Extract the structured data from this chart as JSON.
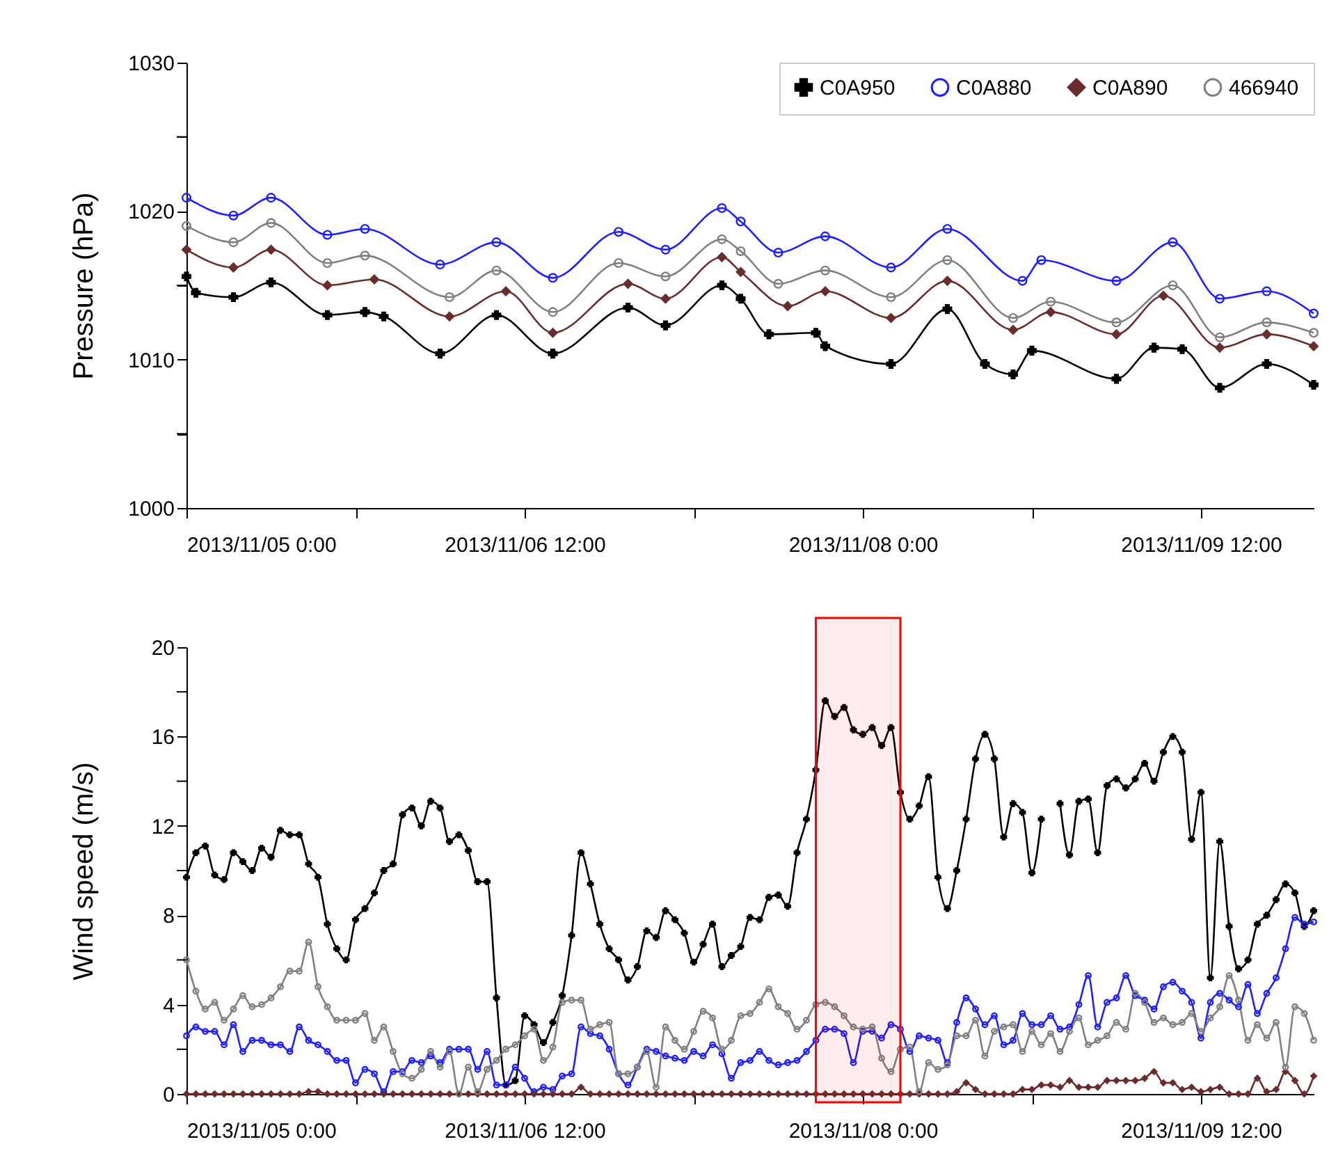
{
  "chart_data": [
    {
      "type": "line",
      "ylabel": "Pressure (hPa)",
      "xlim": [
        "2013-11-05T00:00",
        "2013-11-10T00:00"
      ],
      "xticks": [
        {
          "value": "2013-11-05T00:00",
          "label": "2013/11/05 0:00"
        },
        {
          "value": "2013-11-05T18:00",
          "label": null
        },
        {
          "value": "2013-11-06T12:00",
          "label": "2013/11/06 12:00"
        },
        {
          "value": "2013-11-07T06:00",
          "label": null
        },
        {
          "value": "2013-11-08T00:00",
          "label": "2013/11/08 0:00"
        },
        {
          "value": "2013-11-08T18:00",
          "label": null
        },
        {
          "value": "2013-11-09T12:00",
          "label": "2013/11/09 12:00"
        }
      ],
      "ylim": [
        1000,
        1030
      ],
      "yticks": [
        1000,
        {
          "value": 1005,
          "label": null
        },
        1010,
        {
          "value": 1015,
          "label": null
        },
        1020,
        {
          "value": 1025,
          "label": null
        },
        1030
      ],
      "legend": "top right",
      "line_style": "solid",
      "series": [
        {
          "name": "C0A950",
          "color": "#000000",
          "marker": "cross",
          "x": [
            "2013-11-05T00:00",
            "2013-11-05T01:00",
            "2013-11-05T05:00",
            "2013-11-05T09:00",
            "2013-11-05T15:00",
            "2013-11-05T19:00",
            "2013-11-05T21:00",
            "2013-11-06T03:00",
            "2013-11-06T09:00",
            "2013-11-06T15:00",
            "2013-11-06T23:00",
            "2013-11-07T03:00",
            "2013-11-07T09:00",
            "2013-11-07T11:00",
            "2013-11-07T14:00",
            "2013-11-07T19:00",
            "2013-11-07T20:00",
            "2013-11-08T03:00",
            "2013-11-08T09:00",
            "2013-11-08T13:00",
            "2013-11-08T16:00",
            "2013-11-08T18:00",
            "2013-11-09T03:00",
            "2013-11-09T07:00",
            "2013-11-09T10:00",
            "2013-11-09T14:00",
            "2013-11-09T19:00",
            "2013-11-10T00:00"
          ],
          "values": [
            1015.6,
            1014.5,
            1014.2,
            1015.2,
            1013.0,
            1013.2,
            1012.9,
            1010.4,
            1013.0,
            1010.4,
            1013.5,
            1012.3,
            1015.0,
            1014.1,
            1011.7,
            1011.8,
            1010.9,
            1009.7,
            1013.4,
            1009.7,
            1009.0,
            1010.6,
            1008.7,
            1010.8,
            1010.7,
            1008.1,
            1009.7,
            1008.3
          ]
        },
        {
          "name": "C0A880",
          "color": "#1f1fff",
          "marker": "circle",
          "x": [
            "2013-11-05T00:00",
            "2013-11-05T05:00",
            "2013-11-05T09:00",
            "2013-11-05T15:00",
            "2013-11-05T19:00",
            "2013-11-06T03:00",
            "2013-11-06T09:00",
            "2013-11-06T15:00",
            "2013-11-06T22:00",
            "2013-11-07T03:00",
            "2013-11-07T09:00",
            "2013-11-07T11:00",
            "2013-11-07T15:00",
            "2013-11-07T20:00",
            "2013-11-08T03:00",
            "2013-11-08T09:00",
            "2013-11-08T17:00",
            "2013-11-08T19:00",
            "2013-11-09T03:00",
            "2013-11-09T09:00",
            "2013-11-09T14:00",
            "2013-11-09T19:00",
            "2013-11-10T00:00"
          ],
          "values": [
            1020.9,
            1019.7,
            1020.9,
            1018.4,
            1018.8,
            1016.4,
            1017.9,
            1015.5,
            1018.6,
            1017.4,
            1020.2,
            1019.3,
            1017.2,
            1018.3,
            1016.2,
            1018.8,
            1015.3,
            1016.7,
            1015.3,
            1017.9,
            1014.1,
            1014.6,
            1013.1
          ]
        },
        {
          "name": "C0A890",
          "color": "#6b2c2c",
          "marker": "diamond",
          "x": [
            "2013-11-05T00:00",
            "2013-11-05T05:00",
            "2013-11-05T09:00",
            "2013-11-05T15:00",
            "2013-11-05T20:00",
            "2013-11-06T04:00",
            "2013-11-06T10:00",
            "2013-11-06T15:00",
            "2013-11-06T23:00",
            "2013-11-07T03:00",
            "2013-11-07T09:00",
            "2013-11-07T11:00",
            "2013-11-07T16:00",
            "2013-11-07T20:00",
            "2013-11-08T03:00",
            "2013-11-08T09:00",
            "2013-11-08T16:00",
            "2013-11-08T20:00",
            "2013-11-09T03:00",
            "2013-11-09T08:00",
            "2013-11-09T14:00",
            "2013-11-09T19:00",
            "2013-11-10T00:00"
          ],
          "values": [
            1017.4,
            1016.2,
            1017.4,
            1015.0,
            1015.4,
            1012.9,
            1014.6,
            1011.8,
            1015.1,
            1014.1,
            1016.9,
            1015.9,
            1013.6,
            1014.6,
            1012.8,
            1015.3,
            1012.0,
            1013.2,
            1011.7,
            1014.3,
            1010.8,
            1011.7,
            1010.9
          ]
        },
        {
          "name": "466940",
          "color": "#808080",
          "marker": "circle",
          "x": [
            "2013-11-05T00:00",
            "2013-11-05T05:00",
            "2013-11-05T09:00",
            "2013-11-05T15:00",
            "2013-11-05T19:00",
            "2013-11-06T04:00",
            "2013-11-06T09:00",
            "2013-11-06T15:00",
            "2013-11-06T22:00",
            "2013-11-07T03:00",
            "2013-11-07T09:00",
            "2013-11-07T11:00",
            "2013-11-07T15:00",
            "2013-11-07T20:00",
            "2013-11-08T03:00",
            "2013-11-08T09:00",
            "2013-11-08T16:00",
            "2013-11-08T20:00",
            "2013-11-09T03:00",
            "2013-11-09T09:00",
            "2013-11-09T14:00",
            "2013-11-09T19:00",
            "2013-11-10T00:00"
          ],
          "values": [
            1019.0,
            1017.9,
            1019.2,
            1016.5,
            1017.0,
            1014.2,
            1016.0,
            1013.2,
            1016.5,
            1015.6,
            1018.1,
            1017.3,
            1015.1,
            1016.0,
            1014.2,
            1016.7,
            1012.8,
            1013.9,
            1012.5,
            1015.0,
            1011.5,
            1012.5,
            1011.8
          ]
        }
      ]
    },
    {
      "type": "line",
      "ylabel": "Wind speed (m/s)",
      "xlim": [
        "2013-11-05T00:00",
        "2013-11-10T00:00"
      ],
      "xticks": [
        {
          "value": "2013-11-05T00:00",
          "label": "2013/11/05 0:00"
        },
        {
          "value": "2013-11-05T18:00",
          "label": null
        },
        {
          "value": "2013-11-06T12:00",
          "label": "2013/11/06 12:00"
        },
        {
          "value": "2013-11-07T06:00",
          "label": null
        },
        {
          "value": "2013-11-08T00:00",
          "label": "2013/11/08 0:00"
        },
        {
          "value": "2013-11-08T18:00",
          "label": null
        },
        {
          "value": "2013-11-09T12:00",
          "label": "2013/11/09 12:00"
        }
      ],
      "ylim": [
        0,
        20
      ],
      "yticks": [
        0,
        {
          "value": 2,
          "label": null
        },
        4,
        {
          "value": 6,
          "label": null
        },
        8,
        {
          "value": 10,
          "label": null
        },
        12,
        {
          "value": 14,
          "label": null
        },
        16,
        {
          "value": 18,
          "label": null
        },
        20
      ],
      "line_style": "solid",
      "bands": [
        {
          "axis": "x",
          "from": "2013-11-07T19:00",
          "to": "2013-11-08T04:00",
          "color": "#ff0000"
        }
      ],
      "x": [
        "2013-11-05T00:00",
        "2013-11-05T01:00",
        "2013-11-05T02:00",
        "2013-11-05T03:00",
        "2013-11-05T04:00",
        "2013-11-05T05:00",
        "2013-11-05T06:00",
        "2013-11-05T07:00",
        "2013-11-05T08:00",
        "2013-11-05T09:00",
        "2013-11-05T10:00",
        "2013-11-05T11:00",
        "2013-11-05T12:00",
        "2013-11-05T13:00",
        "2013-11-05T14:00",
        "2013-11-05T15:00",
        "2013-11-05T16:00",
        "2013-11-05T17:00",
        "2013-11-05T18:00",
        "2013-11-05T19:00",
        "2013-11-05T20:00",
        "2013-11-05T21:00",
        "2013-11-05T22:00",
        "2013-11-05T23:00",
        "2013-11-06T00:00",
        "2013-11-06T01:00",
        "2013-11-06T02:00",
        "2013-11-06T03:00",
        "2013-11-06T04:00",
        "2013-11-06T05:00",
        "2013-11-06T06:00",
        "2013-11-06T07:00",
        "2013-11-06T08:00",
        "2013-11-06T09:00",
        "2013-11-06T10:00",
        "2013-11-06T11:00",
        "2013-11-06T12:00",
        "2013-11-06T13:00",
        "2013-11-06T14:00",
        "2013-11-06T15:00",
        "2013-11-06T16:00",
        "2013-11-06T17:00",
        "2013-11-06T18:00",
        "2013-11-06T19:00",
        "2013-11-06T20:00",
        "2013-11-06T21:00",
        "2013-11-06T22:00",
        "2013-11-06T23:00",
        "2013-11-07T00:00",
        "2013-11-07T01:00",
        "2013-11-07T02:00",
        "2013-11-07T03:00",
        "2013-11-07T04:00",
        "2013-11-07T05:00",
        "2013-11-07T06:00",
        "2013-11-07T07:00",
        "2013-11-07T08:00",
        "2013-11-07T09:00",
        "2013-11-07T10:00",
        "2013-11-07T11:00",
        "2013-11-07T12:00",
        "2013-11-07T13:00",
        "2013-11-07T14:00",
        "2013-11-07T15:00",
        "2013-11-07T16:00",
        "2013-11-07T17:00",
        "2013-11-07T18:00",
        "2013-11-07T19:00",
        "2013-11-07T20:00",
        "2013-11-07T21:00",
        "2013-11-07T22:00",
        "2013-11-07T23:00",
        "2013-11-08T00:00",
        "2013-11-08T01:00",
        "2013-11-08T02:00",
        "2013-11-08T03:00",
        "2013-11-08T04:00",
        "2013-11-08T05:00",
        "2013-11-08T06:00",
        "2013-11-08T07:00",
        "2013-11-08T08:00",
        "2013-11-08T09:00",
        "2013-11-08T10:00",
        "2013-11-08T11:00",
        "2013-11-08T12:00",
        "2013-11-08T13:00",
        "2013-11-08T14:00",
        "2013-11-08T15:00",
        "2013-11-08T16:00",
        "2013-11-08T17:00",
        "2013-11-08T18:00",
        "2013-11-08T19:00",
        "2013-11-08T20:00",
        "2013-11-08T21:00",
        "2013-11-08T22:00",
        "2013-11-08T23:00",
        "2013-11-09T00:00",
        "2013-11-09T01:00",
        "2013-11-09T02:00",
        "2013-11-09T03:00",
        "2013-11-09T04:00",
        "2013-11-09T05:00",
        "2013-11-09T06:00",
        "2013-11-09T07:00",
        "2013-11-09T08:00",
        "2013-11-09T09:00",
        "2013-11-09T10:00",
        "2013-11-09T11:00",
        "2013-11-09T12:00",
        "2013-11-09T13:00",
        "2013-11-09T14:00",
        "2013-11-09T15:00",
        "2013-11-09T16:00",
        "2013-11-09T17:00",
        "2013-11-09T18:00",
        "2013-11-09T19:00",
        "2013-11-09T20:00",
        "2013-11-09T21:00",
        "2013-11-09T22:00",
        "2013-11-09T23:00",
        "2013-11-10T00:00"
      ],
      "series": [
        {
          "color": "#000000",
          "marker": "cross",
          "values": [
            9.7,
            10.8,
            11.1,
            9.8,
            9.6,
            10.8,
            10.4,
            10.0,
            11.0,
            10.6,
            11.8,
            11.6,
            11.6,
            10.3,
            9.7,
            7.6,
            6.5,
            6.0,
            7.8,
            8.3,
            9.0,
            10.0,
            10.3,
            12.5,
            12.8,
            12.0,
            13.1,
            12.8,
            11.3,
            11.6,
            10.9,
            9.5,
            9.5,
            4.3,
            0.4,
            0.6,
            3.5,
            3.1,
            2.3,
            3.2,
            4.4,
            7.1,
            10.8,
            9.4,
            7.6,
            6.5,
            6.0,
            5.1,
            5.7,
            7.3,
            7.0,
            8.2,
            7.8,
            7.2,
            5.9,
            6.7,
            7.6,
            5.7,
            6.2,
            6.6,
            7.9,
            7.8,
            8.8,
            8.9,
            8.4,
            10.8,
            12.3,
            14.5,
            17.6,
            16.9,
            17.3,
            16.3,
            16.1,
            16.4,
            15.6,
            16.4,
            13.5,
            12.3,
            12.9,
            14.2,
            9.7,
            8.3,
            10.0,
            12.3,
            15.0,
            16.1,
            15.0,
            11.5,
            13.0,
            12.6,
            9.9,
            12.3,
            null,
            13.0,
            10.7,
            13.1,
            13.2,
            10.8,
            13.8,
            14.1,
            13.7,
            14.1,
            14.8,
            14.0,
            15.3,
            16.0,
            15.3,
            11.4,
            13.5,
            5.2,
            11.3,
            7.5,
            5.6,
            6.0,
            7.6,
            8.0,
            8.7,
            9.4,
            9.0,
            7.5,
            8.2
          ]
        },
        {
          "color": "#1f1fff",
          "marker": "circle",
          "values": [
            2.6,
            3.0,
            2.8,
            2.8,
            2.2,
            3.1,
            1.9,
            2.4,
            2.4,
            2.2,
            2.2,
            1.9,
            3.0,
            2.4,
            2.2,
            1.9,
            1.5,
            1.5,
            0.5,
            1.1,
            0.9,
            0.1,
            1.0,
            1.0,
            1.5,
            1.4,
            1.7,
            1.4,
            2.0,
            2.0,
            2.0,
            1.1,
            1.9,
            0.4,
            0.4,
            1.2,
            0.7,
            0.1,
            0.3,
            0.2,
            0.8,
            0.9,
            3.0,
            2.7,
            2.6,
            2.0,
            0.9,
            0.4,
            1.2,
            2.0,
            1.9,
            1.7,
            1.6,
            1.5,
            1.9,
            1.7,
            2.2,
            1.8,
            0.7,
            1.4,
            1.5,
            1.9,
            1.5,
            1.3,
            1.4,
            1.5,
            1.9,
            2.4,
            2.9,
            2.9,
            2.7,
            1.4,
            2.8,
            2.8,
            2.5,
            3.1,
            2.9,
            1.9,
            2.6,
            2.5,
            2.4,
            1.4,
            3.2,
            4.3,
            3.8,
            3.1,
            3.5,
            2.2,
            2.4,
            3.6,
            3.1,
            3.1,
            3.5,
            2.9,
            3.0,
            4.0,
            5.3,
            3.0,
            4.1,
            4.3,
            5.3,
            4.4,
            4.2,
            3.8,
            4.8,
            5.0,
            4.6,
            4.1,
            2.5,
            4.1,
            4.5,
            4.2,
            3.9,
            4.9,
            3.6,
            4.5,
            5.2,
            6.5,
            7.9,
            7.6,
            7.7
          ]
        },
        {
          "color": "#6b2c2c",
          "marker": "diamond",
          "values": [
            0,
            0,
            0,
            0,
            0,
            0,
            0,
            0,
            0,
            0,
            0,
            0,
            0,
            0.1,
            0.1,
            0,
            0,
            0,
            0,
            0,
            0,
            0,
            0,
            0,
            0,
            0,
            0,
            0,
            0,
            0,
            0,
            0,
            0,
            0,
            0,
            0,
            0,
            0,
            0,
            0,
            0,
            0,
            0.3,
            0,
            0,
            0,
            0,
            0,
            0,
            0,
            0,
            0,
            0,
            0,
            0,
            0,
            0,
            0,
            0,
            0,
            0,
            0,
            0,
            0,
            0,
            0,
            0,
            0,
            0,
            0,
            0,
            0,
            0,
            0,
            0,
            0,
            0,
            0,
            0,
            0,
            0,
            0,
            0.1,
            0.5,
            0.2,
            0,
            0,
            0,
            0,
            0.2,
            0.2,
            0.4,
            0.4,
            0.3,
            0.6,
            0.3,
            0.3,
            0.3,
            0.6,
            0.6,
            0.6,
            0.6,
            0.7,
            1.0,
            0.5,
            0.5,
            0.2,
            0.3,
            0.1,
            0.2,
            0.3,
            0,
            0,
            0,
            0.7,
            0.1,
            0.2,
            1.0,
            0.6,
            0,
            0.8
          ]
        },
        {
          "color": "#808080",
          "marker": "circle",
          "values": [
            6.0,
            4.6,
            3.8,
            4.1,
            3.3,
            3.8,
            4.4,
            3.9,
            4.0,
            4.3,
            4.8,
            5.5,
            5.5,
            6.8,
            4.8,
            3.9,
            3.3,
            3.3,
            3.3,
            3.6,
            2.4,
            3.0,
            1.9,
            0.9,
            0.7,
            1.1,
            1.9,
            1.2,
            1.9,
            0.0,
            1.2,
            0.1,
            1.1,
            1.5,
            2.0,
            2.2,
            2.6,
            2.9,
            1.5,
            2.1,
            4.1,
            4.2,
            4.2,
            2.9,
            3.1,
            3.2,
            0.9,
            0.9,
            1.2,
            1.9,
            0.3,
            3.0,
            2.4,
            2.0,
            2.8,
            3.7,
            3.4,
            2.0,
            2.4,
            3.5,
            3.6,
            4.1,
            4.7,
            3.9,
            3.6,
            2.9,
            3.3,
            4.0,
            4.1,
            3.9,
            3.5,
            3.0,
            2.9,
            3.0,
            1.6,
            1.0,
            2.0,
            2.1,
            0.1,
            1.4,
            1.1,
            1.3,
            2.6,
            2.6,
            3.3,
            1.7,
            2.8,
            3.0,
            3.1,
            1.9,
            2.8,
            2.2,
            2.7,
            1.9,
            2.8,
            3.4,
            2.2,
            2.4,
            2.6,
            3.2,
            2.9,
            4.5,
            4.1,
            3.2,
            3.4,
            3.1,
            3.2,
            3.6,
            2.8,
            3.4,
            3.9,
            5.3,
            4.2,
            2.4,
            3.1,
            2.5,
            3.2,
            1.2,
            3.9,
            3.6,
            2.4
          ]
        }
      ]
    }
  ]
}
